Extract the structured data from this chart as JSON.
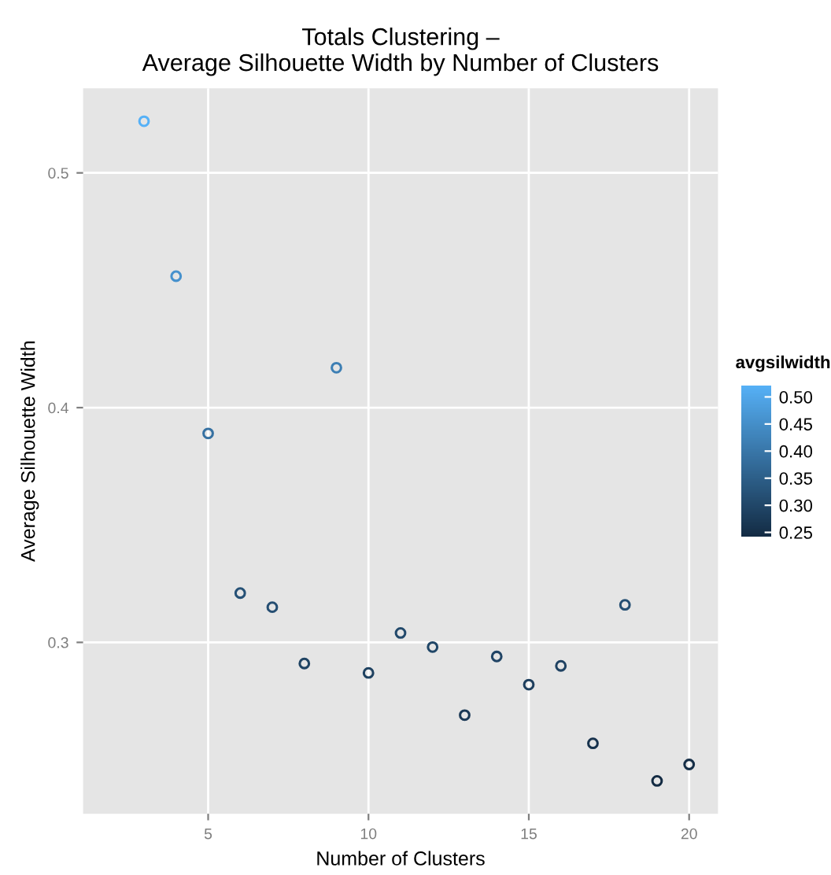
{
  "chart_data": {
    "type": "scatter",
    "title": "Totals Clustering –\nAverage Silhouette Width by Number of Clusters",
    "xlabel": "Number of Clusters",
    "ylabel": "Average Silhouette Width",
    "clabel": "avgsilwidth",
    "x": [
      3,
      4,
      5,
      6,
      7,
      8,
      9,
      10,
      11,
      12,
      13,
      14,
      15,
      16,
      17,
      18,
      19,
      20
    ],
    "values": [
      0.522,
      0.456,
      0.389,
      0.321,
      0.315,
      0.291,
      0.417,
      0.287,
      0.304,
      0.298,
      0.269,
      0.294,
      0.282,
      0.29,
      0.257,
      0.316,
      0.241,
      0.248
    ],
    "cvalues": [
      0.522,
      0.456,
      0.389,
      0.321,
      0.315,
      0.291,
      0.417,
      0.287,
      0.304,
      0.298,
      0.269,
      0.294,
      0.282,
      0.29,
      0.257,
      0.316,
      0.241,
      0.248
    ],
    "clim": [
      0.241,
      0.522
    ],
    "cticks": [
      {
        "value": 0.25,
        "label": "0.25"
      },
      {
        "value": 0.3,
        "label": "0.30"
      },
      {
        "value": 0.35,
        "label": "0.35"
      },
      {
        "value": 0.4,
        "label": "0.40"
      },
      {
        "value": 0.45,
        "label": "0.45"
      },
      {
        "value": 0.5,
        "label": "0.50"
      }
    ],
    "xlim": [
      1.1,
      20.9
    ],
    "xticks": [
      5,
      10,
      15,
      20
    ],
    "ylim": [
      0.227,
      0.536
    ],
    "yticks": [
      0.3,
      0.4,
      0.5
    ],
    "grid": true,
    "marker": "circle"
  }
}
